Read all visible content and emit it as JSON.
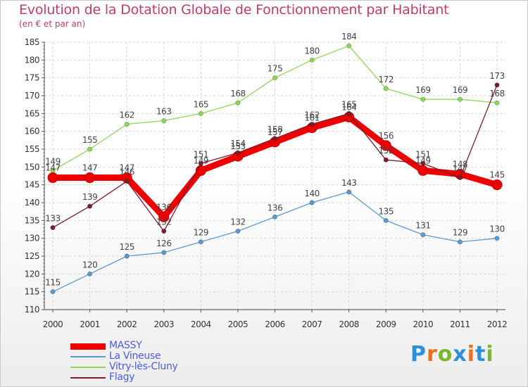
{
  "title": "Evolution de la Dotation Globale de Fonctionnement par Habitant",
  "subtitle": "(en € et par an)",
  "brand": {
    "text": "Proxiti",
    "letters": [
      "P",
      "r",
      "o",
      "x",
      "i",
      "t",
      "i"
    ],
    "letter_colors": [
      "#2e90d6",
      "#e9711c",
      "#7db52d",
      "#2e90d6",
      "#e9711c",
      "#2e90d6",
      "#7db52d"
    ]
  },
  "chart_data": {
    "type": "line",
    "title": "Evolution de la Dotation Globale de Fonctionnement par Habitant",
    "subtitle": "(en € et par an)",
    "xlabel": "",
    "ylabel": "",
    "x": [
      "2000",
      "2001",
      "2002",
      "2003",
      "2004",
      "2005",
      "2006",
      "2007",
      "2008",
      "2009",
      "2010",
      "2011",
      "2012"
    ],
    "ylim": [
      110,
      185
    ],
    "yticks": [
      110,
      115,
      120,
      125,
      130,
      135,
      140,
      145,
      150,
      155,
      160,
      165,
      170,
      175,
      180,
      185
    ],
    "grid": true,
    "legend_position": "bottom-left",
    "series": [
      {
        "name": "MASSY",
        "color": "#ee0000",
        "values": [
          147,
          147,
          147,
          136,
          149,
          153,
          157,
          161,
          164,
          156,
          149,
          148,
          145
        ],
        "labels": [
          "147",
          "147",
          "147",
          "136",
          "149",
          "153",
          "157",
          "161",
          "164",
          "156",
          "149",
          "148",
          "145"
        ]
      },
      {
        "name": "La Vineuse",
        "color": "#5b9ad1",
        "values": [
          115,
          120,
          125,
          126,
          129,
          132,
          136,
          140,
          143,
          135,
          131,
          129,
          130
        ],
        "labels": [
          "115",
          "120",
          "125",
          "126",
          "129",
          "132",
          "136",
          "140",
          "143",
          "135",
          "131",
          "129",
          "130"
        ]
      },
      {
        "name": "Vitry-lès-Cluny",
        "color": "#8fd55a",
        "values": [
          149,
          155,
          162,
          163,
          165,
          168,
          175,
          180,
          184,
          172,
          169,
          169,
          168
        ],
        "labels": [
          "149",
          "155",
          "162",
          "163",
          "165",
          "168",
          "175",
          "180",
          "184",
          "172",
          "169",
          "169",
          "168"
        ]
      },
      {
        "name": "Flagy",
        "color": "#7a1e2c",
        "values": [
          133,
          139,
          146,
          132,
          151,
          154,
          158,
          162,
          165,
          152,
          151,
          147,
          173
        ],
        "labels": [
          "133",
          "139",
          "146",
          "132",
          "151",
          "154",
          "158",
          "162",
          "165",
          "152",
          "151",
          "147",
          "173"
        ]
      }
    ]
  }
}
